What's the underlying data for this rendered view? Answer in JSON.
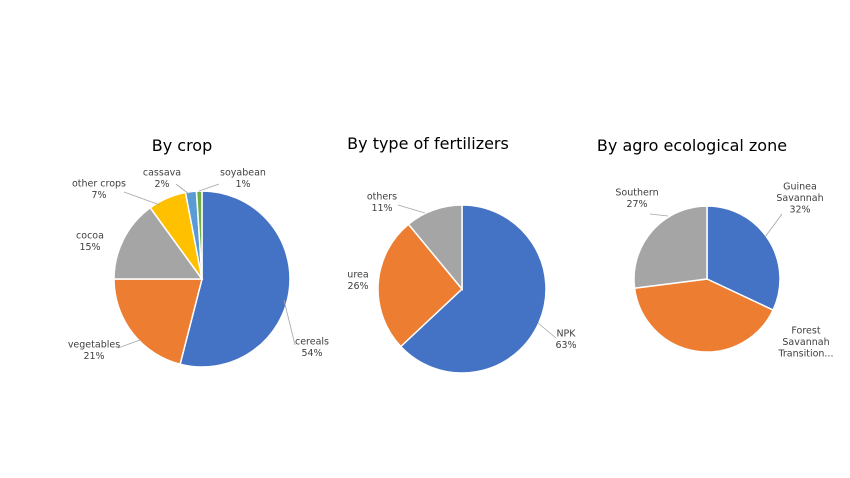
{
  "chart_data": [
    {
      "type": "pie",
      "title": "By crop",
      "slices": [
        {
          "name": "cereals",
          "value": 54,
          "label": "54%",
          "color": "#4472C4"
        },
        {
          "name": "vegetables",
          "value": 21,
          "label": "21%",
          "color": "#ED7D31"
        },
        {
          "name": "cocoa",
          "value": 15,
          "label": "15%",
          "color": "#A5A5A5"
        },
        {
          "name": "other crops",
          "value": 7,
          "label": "7%",
          "color": "#FFC000"
        },
        {
          "name": "cassava",
          "value": 2,
          "label": "2%",
          "color": "#5B9BD5"
        },
        {
          "name": "soyabean",
          "value": 1,
          "label": "1%",
          "color": "#70AD47"
        }
      ]
    },
    {
      "type": "pie",
      "title": "By type of fertilizers",
      "slices": [
        {
          "name": "NPK",
          "value": 63,
          "label": "63%",
          "color": "#4472C4"
        },
        {
          "name": "urea",
          "value": 26,
          "label": "26%",
          "color": "#ED7D31"
        },
        {
          "name": "others",
          "value": 11,
          "label": "11%",
          "color": "#A5A5A5"
        }
      ]
    },
    {
      "type": "pie",
      "title": "By agro ecological zone",
      "slices": [
        {
          "name": "Guinea Savannah",
          "value": 32,
          "label": "32%",
          "color": "#4472C4"
        },
        {
          "name": "Forest Savannah Transition...",
          "value": 41,
          "label": "",
          "color": "#ED7D31"
        },
        {
          "name": "Southern",
          "value": 27,
          "label": "27%",
          "color": "#A5A5A5"
        }
      ]
    }
  ]
}
